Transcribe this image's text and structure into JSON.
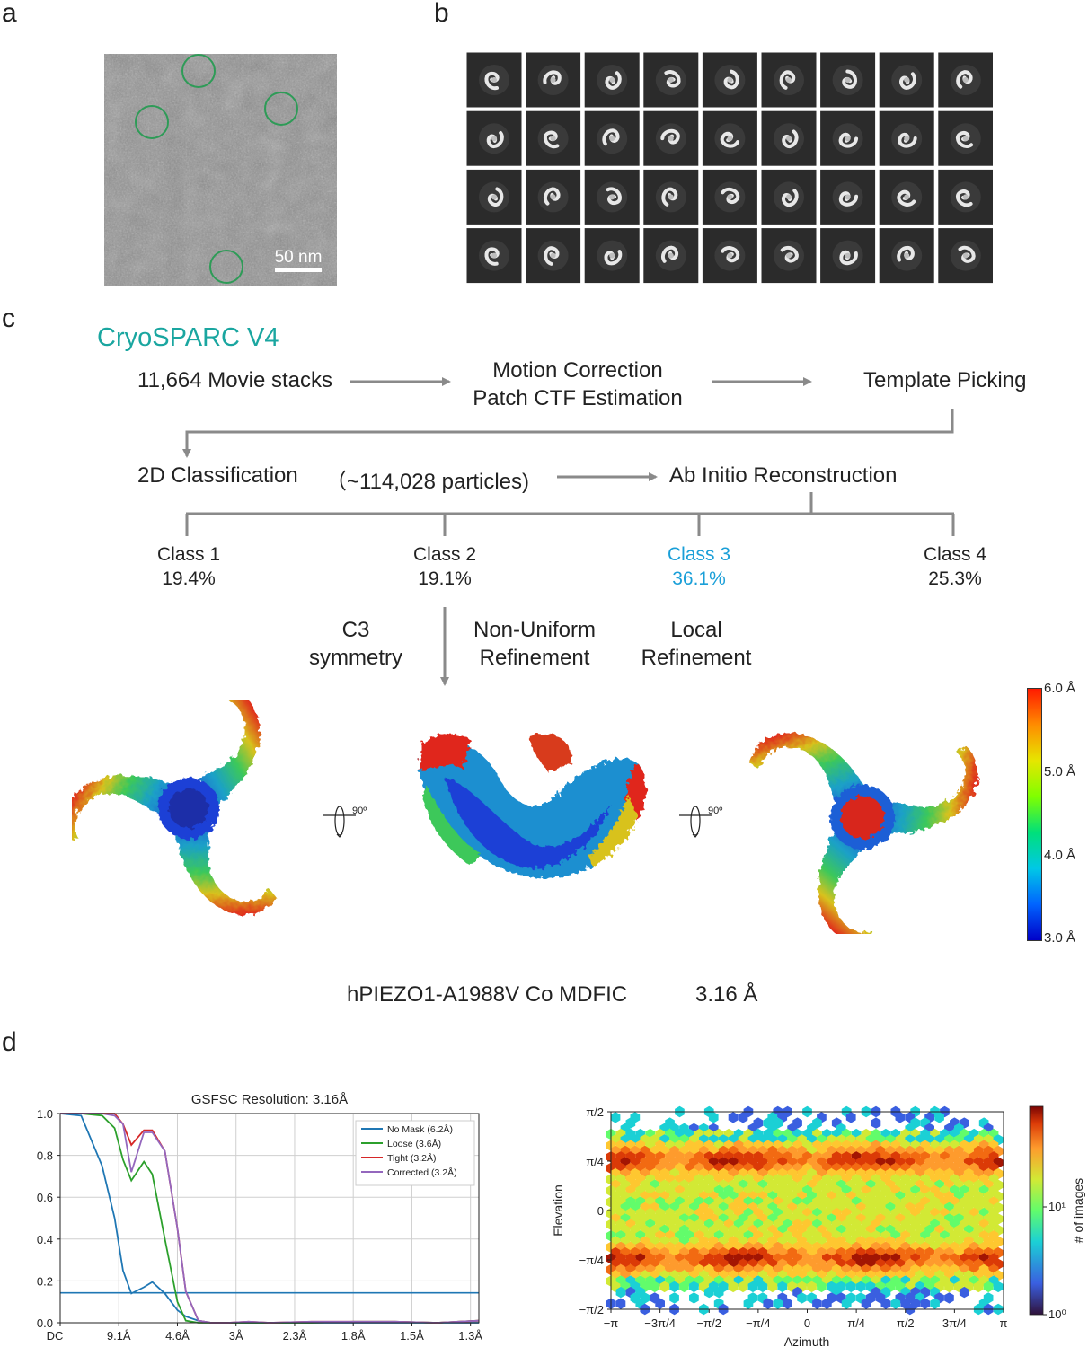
{
  "panels": {
    "a": "a",
    "b": "b",
    "c": "c",
    "d": "d"
  },
  "micrograph": {
    "scale_bar": "50 nm"
  },
  "workflow": {
    "software": "CryoSPARC V4",
    "movies": "11,664 Movie stacks",
    "motion_line1": "Motion Correction",
    "motion_line2": "Patch CTF Estimation",
    "template": "Template Picking",
    "classification": "2D Classification",
    "particles": "（~114,028 particles)",
    "abinitio": "Ab Initio Reconstruction",
    "classes": [
      {
        "name": "Class 1",
        "pct": "19.4%"
      },
      {
        "name": "Class 2",
        "pct": "19.1%"
      },
      {
        "name": "Class 3",
        "pct": "36.1%"
      },
      {
        "name": "Class 4",
        "pct": "25.3%"
      }
    ],
    "selected_class_color": "#1a9fd8",
    "software_color": "#1aa6a0",
    "c3_line1": "C3",
    "c3_line2": "symmetry",
    "nu_line1": "Non-Uniform",
    "nu_line2": "Refinement",
    "local_line1": "Local",
    "local_line2": "Refinement",
    "rotation": "90º",
    "colorbar_ticks": [
      "6.0 Å",
      "5.0 Å",
      "4.0 Å",
      "3.0 Å"
    ],
    "map_name": "hPIEZO1-A1988V Co MDFIC",
    "map_resolution": "3.16 Å"
  },
  "chart_data": [
    {
      "type": "line",
      "title": "GSFSC Resolution: 3.16Å",
      "x_tick_labels": [
        "DC",
        "9.1Å",
        "4.6Å",
        "3Å",
        "2.3Å",
        "1.8Å",
        "1.5Å",
        "1.3Å"
      ],
      "y_ticks": [
        "0.0",
        "0.2",
        "0.4",
        "0.6",
        "0.8",
        "1.0"
      ],
      "ylim": [
        0,
        1
      ],
      "grid": true,
      "legend_position": "top-right",
      "threshold": 0.143,
      "threshold_color": "#1f77b4",
      "x": [
        0,
        0.05,
        0.1,
        0.13,
        0.15,
        0.17,
        0.2,
        0.22,
        0.25,
        0.28,
        0.3,
        0.33,
        0.36,
        0.4,
        0.45,
        0.5,
        0.6,
        0.7,
        0.8,
        0.9,
        1.0
      ],
      "series": [
        {
          "name": "No Mask (6.2Å)",
          "color": "#1f77b4",
          "values": [
            1.0,
            0.99,
            0.75,
            0.5,
            0.25,
            0.14,
            0.17,
            0.195,
            0.14,
            0.06,
            0.03,
            0.01,
            0.0,
            0.0,
            0.0,
            0.0,
            0.0,
            0.0,
            0.0,
            0.0,
            0.0
          ]
        },
        {
          "name": "Loose (3.6Å)",
          "color": "#2ca02c",
          "values": [
            1.0,
            1.0,
            0.99,
            0.93,
            0.78,
            0.68,
            0.77,
            0.71,
            0.4,
            0.1,
            0.01,
            0.0,
            0.0,
            0.0,
            0.0,
            0.0,
            0.0,
            0.005,
            0.005,
            0.0,
            0.01
          ]
        },
        {
          "name": "Tight (3.2Å)",
          "color": "#d62728",
          "values": [
            1.0,
            1.0,
            1.0,
            1.0,
            0.95,
            0.85,
            0.92,
            0.92,
            0.82,
            0.45,
            0.15,
            0.01,
            0.0,
            0.0,
            0.005,
            0.0,
            0.005,
            0.005,
            0.005,
            0.0,
            0.01
          ]
        },
        {
          "name": "Corrected (3.2Å)",
          "color": "#9467bd",
          "values": [
            1.0,
            1.0,
            1.0,
            0.99,
            0.95,
            0.72,
            0.91,
            0.91,
            0.82,
            0.45,
            0.15,
            0.01,
            0.0,
            0.0,
            0.005,
            0.0,
            0.005,
            0.005,
            0.005,
            0.0,
            0.01
          ]
        }
      ]
    },
    {
      "type": "heatmap",
      "xlabel": "Azimuth",
      "ylabel": "Elevation",
      "x_tick_labels": [
        "−π",
        "−3π/4",
        "−π/2",
        "−π/4",
        "0",
        "π/4",
        "π/2",
        "3π/4",
        "π"
      ],
      "y_tick_labels": [
        "π/2",
        "π/4",
        "0",
        "−π/4",
        "−π/2"
      ],
      "colorbar_label": "# of images",
      "colorbar_scale": "log",
      "colorbar_tick_labels": [
        "10⁰",
        "10¹"
      ]
    }
  ]
}
